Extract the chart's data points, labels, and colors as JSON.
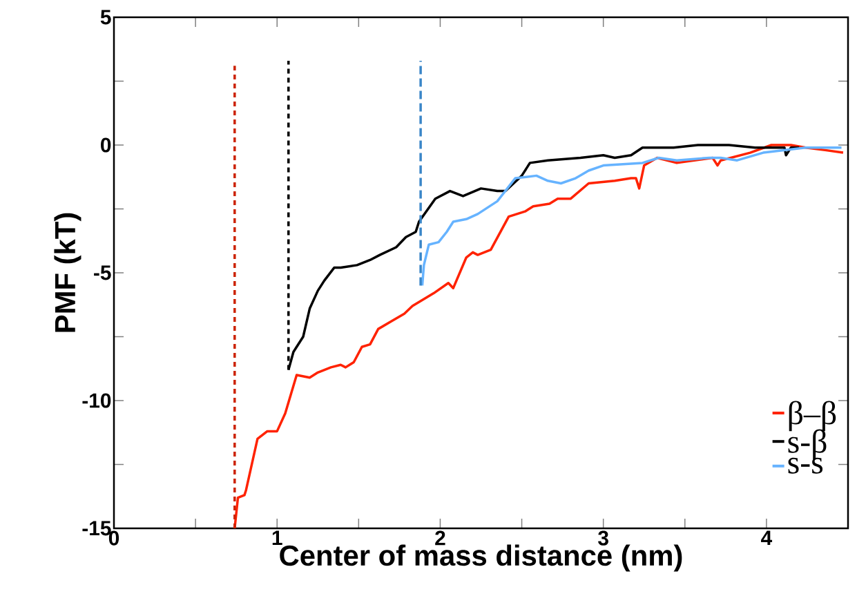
{
  "chart_data": {
    "type": "line",
    "xlabel": "Center of mass distance (nm)",
    "ylabel": "PMF (kT)",
    "xlim": [
      0,
      4.5
    ],
    "ylim": [
      -15,
      5
    ],
    "xticks": [
      0,
      {
        "value": 0.5,
        "label": null
      },
      1,
      {
        "value": 1.5,
        "label": null
      },
      2,
      {
        "value": 2.5,
        "label": null
      },
      3,
      {
        "value": 3.5,
        "label": null
      },
      4
    ],
    "yticks": [
      -15,
      {
        "value": -12.5,
        "label": null
      },
      -10,
      {
        "value": -7.5,
        "label": null
      },
      -5,
      {
        "value": -2.5,
        "label": null
      },
      0,
      {
        "value": 2.5,
        "label": null
      },
      5
    ],
    "grid": false,
    "legend": "bottom right",
    "marker": "none",
    "series": [
      {
        "name": "β–β",
        "color": "#ff2200",
        "x": [
          0.74,
          0.76,
          0.8,
          0.81,
          0.88,
          0.94,
          1.0,
          1.05,
          1.12,
          1.2,
          1.25,
          1.33,
          1.39,
          1.42,
          1.47,
          1.52,
          1.57,
          1.62,
          1.7,
          1.78,
          1.83,
          1.96,
          2.05,
          2.08,
          2.16,
          2.2,
          2.23,
          2.31,
          2.42,
          2.52,
          2.57,
          2.67,
          2.72,
          2.8,
          2.91,
          3.07,
          3.17,
          3.2,
          3.22,
          3.25,
          3.33,
          3.45,
          3.67,
          3.7,
          3.72,
          3.9,
          4.03,
          4.15,
          4.24,
          4.36,
          4.47
        ],
        "values": [
          -15,
          -13.8,
          -13.7,
          -13.5,
          -11.5,
          -11.2,
          -11.2,
          -10.5,
          -9.0,
          -9.1,
          -8.9,
          -8.7,
          -8.6,
          -8.7,
          -8.5,
          -7.9,
          -7.8,
          -7.2,
          -6.9,
          -6.6,
          -6.3,
          -5.8,
          -5.4,
          -5.6,
          -4.4,
          -4.2,
          -4.3,
          -4.1,
          -2.8,
          -2.6,
          -2.4,
          -2.3,
          -2.1,
          -2.1,
          -1.5,
          -1.4,
          -1.3,
          -1.3,
          -1.7,
          -0.8,
          -0.5,
          -0.7,
          -0.5,
          -0.8,
          -0.6,
          -0.3,
          0.0,
          0.0,
          -0.1,
          -0.2,
          -0.3
        ]
      },
      {
        "name": "s-β",
        "color": "#000000",
        "x": [
          1.07,
          1.1,
          1.12,
          1.16,
          1.2,
          1.25,
          1.29,
          1.35,
          1.39,
          1.49,
          1.57,
          1.63,
          1.73,
          1.79,
          1.85,
          1.87,
          1.97,
          2.06,
          2.14,
          2.25,
          2.35,
          2.4,
          2.5,
          2.55,
          2.66,
          2.86,
          3.0,
          3.07,
          3.17,
          3.24,
          3.31,
          3.43,
          3.58,
          3.77,
          3.93,
          3.98,
          4.11,
          4.12,
          4.15,
          4.2
        ],
        "values": [
          -8.8,
          -8.1,
          -7.9,
          -7.5,
          -6.4,
          -5.7,
          -5.3,
          -4.8,
          -4.8,
          -4.7,
          -4.5,
          -4.3,
          -4.0,
          -3.6,
          -3.4,
          -3.0,
          -2.1,
          -1.8,
          -2.0,
          -1.7,
          -1.8,
          -1.8,
          -1.2,
          -0.7,
          -0.6,
          -0.5,
          -0.4,
          -0.5,
          -0.4,
          -0.1,
          -0.1,
          -0.1,
          0.0,
          0.0,
          -0.1,
          -0.1,
          -0.1,
          -0.4,
          -0.1,
          -0.1
        ]
      },
      {
        "name": "s-s",
        "color": "#66b3ff",
        "x": [
          1.89,
          1.9,
          1.93,
          1.99,
          2.04,
          2.08,
          2.16,
          2.23,
          2.35,
          2.46,
          2.59,
          2.66,
          2.74,
          2.83,
          2.91,
          3.0,
          3.24,
          3.34,
          3.45,
          3.65,
          3.72,
          3.82,
          3.98,
          4.24,
          4.46
        ],
        "values": [
          -5.5,
          -4.7,
          -3.9,
          -3.8,
          -3.4,
          -3.0,
          -2.9,
          -2.7,
          -2.2,
          -1.3,
          -1.2,
          -1.4,
          -1.5,
          -1.3,
          -1.0,
          -0.8,
          -0.7,
          -0.5,
          -0.6,
          -0.5,
          -0.5,
          -0.6,
          -0.3,
          -0.1,
          -0.1
        ]
      },
      {
        "type": "line",
        "line_style": "dotted",
        "color": "#cc2200",
        "x": [
          0.74,
          0.74
        ],
        "values": [
          -15,
          3.1
        ]
      },
      {
        "type": "line",
        "line_style": "dotted",
        "color": "#000000",
        "x": [
          1.07,
          1.07
        ],
        "values": [
          -8.8,
          3.3
        ]
      },
      {
        "type": "line",
        "line_style": "dashed",
        "color": "#3a86c8",
        "x": [
          1.88,
          1.88
        ],
        "values": [
          -5.5,
          3.3
        ]
      }
    ]
  }
}
